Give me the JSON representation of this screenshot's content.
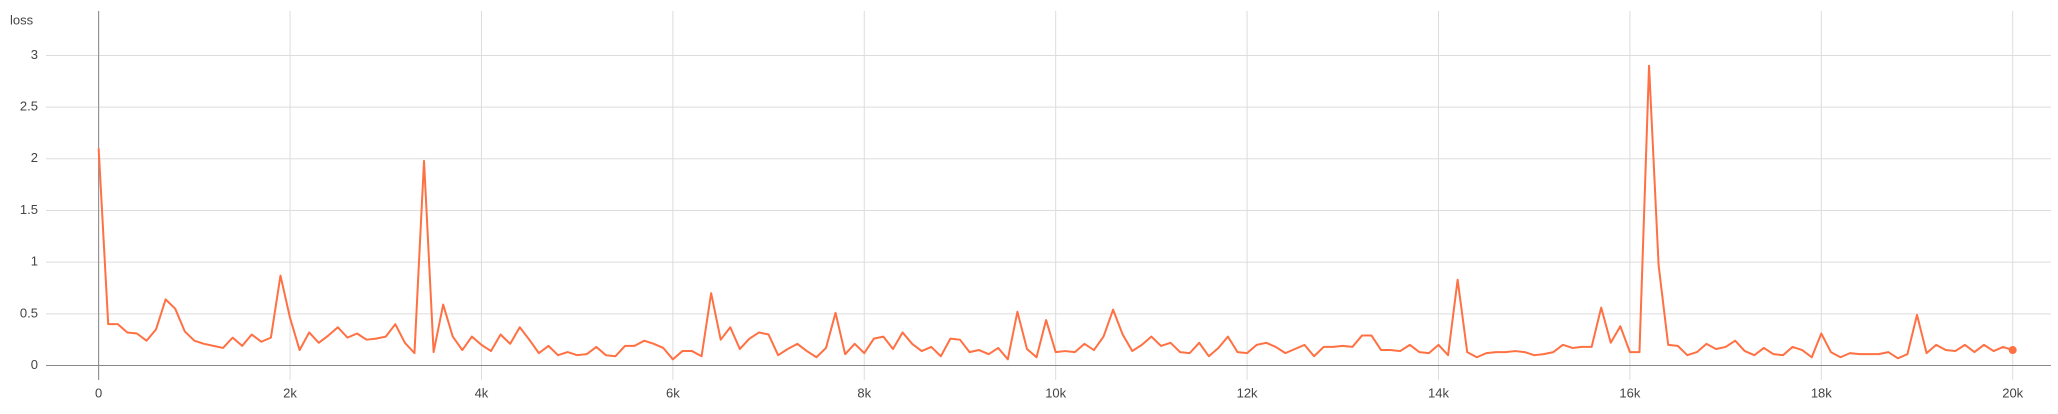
{
  "chart_data": {
    "type": "line",
    "title": "loss",
    "x": [
      0,
      100,
      200,
      300,
      400,
      500,
      600,
      700,
      800,
      900,
      1000,
      1100,
      1200,
      1300,
      1400,
      1500,
      1600,
      1700,
      1800,
      1900,
      2000,
      2100,
      2200,
      2300,
      2400,
      2500,
      2600,
      2700,
      2800,
      2900,
      3000,
      3100,
      3200,
      3300,
      3400,
      3500,
      3600,
      3700,
      3800,
      3900,
      4000,
      4100,
      4200,
      4300,
      4400,
      4500,
      4600,
      4700,
      4800,
      4900,
      5000,
      5100,
      5200,
      5300,
      5400,
      5500,
      5600,
      5700,
      5800,
      5900,
      6000,
      6100,
      6200,
      6300,
      6400,
      6500,
      6600,
      6700,
      6800,
      6900,
      7000,
      7100,
      7200,
      7300,
      7400,
      7500,
      7600,
      7700,
      7800,
      7900,
      8000,
      8100,
      8200,
      8300,
      8400,
      8500,
      8600,
      8700,
      8800,
      8900,
      9000,
      9100,
      9200,
      9300,
      9400,
      9500,
      9600,
      9700,
      9800,
      9900,
      10000,
      10100,
      10200,
      10300,
      10400,
      10500,
      10600,
      10700,
      10800,
      10900,
      11000,
      11100,
      11200,
      11300,
      11400,
      11500,
      11600,
      11700,
      11800,
      11900,
      12000,
      12100,
      12200,
      12300,
      12400,
      12500,
      12600,
      12700,
      12800,
      12900,
      13000,
      13100,
      13200,
      13300,
      13400,
      13500,
      13600,
      13700,
      13800,
      13900,
      14000,
      14100,
      14200,
      14300,
      14400,
      14500,
      14600,
      14700,
      14800,
      14900,
      15000,
      15100,
      15200,
      15300,
      15400,
      15500,
      15600,
      15700,
      15800,
      15900,
      16000,
      16100,
      16200,
      16300,
      16400,
      16500,
      16600,
      16700,
      16800,
      16900,
      17000,
      17100,
      17200,
      17300,
      17400,
      17500,
      17600,
      17700,
      17800,
      17900,
      18000,
      18100,
      18200,
      18300,
      18400,
      18500,
      18600,
      18700,
      18800,
      18900,
      19000,
      19100,
      19200,
      19300,
      19400,
      19500,
      19600,
      19700,
      19800,
      19900,
      20000
    ],
    "series": [
      {
        "color": "#ff7043",
        "values": [
          2.1,
          0.4,
          0.4,
          0.32,
          0.31,
          0.24,
          0.35,
          0.64,
          0.55,
          0.33,
          0.24,
          0.21,
          0.19,
          0.17,
          0.27,
          0.19,
          0.3,
          0.23,
          0.27,
          0.87,
          0.46,
          0.15,
          0.32,
          0.22,
          0.29,
          0.37,
          0.27,
          0.31,
          0.25,
          0.26,
          0.28,
          0.4,
          0.22,
          0.12,
          1.98,
          0.13,
          0.59,
          0.28,
          0.15,
          0.28,
          0.2,
          0.14,
          0.3,
          0.21,
          0.37,
          0.25,
          0.12,
          0.19,
          0.1,
          0.13,
          0.1,
          0.11,
          0.18,
          0.1,
          0.09,
          0.19,
          0.19,
          0.24,
          0.21,
          0.17,
          0.06,
          0.14,
          0.14,
          0.09,
          0.7,
          0.25,
          0.37,
          0.16,
          0.26,
          0.32,
          0.3,
          0.1,
          0.16,
          0.21,
          0.14,
          0.08,
          0.17,
          0.51,
          0.11,
          0.21,
          0.12,
          0.26,
          0.28,
          0.16,
          0.32,
          0.21,
          0.14,
          0.18,
          0.09,
          0.26,
          0.25,
          0.13,
          0.15,
          0.11,
          0.17,
          0.06,
          0.52,
          0.16,
          0.08,
          0.44,
          0.13,
          0.14,
          0.13,
          0.21,
          0.15,
          0.28,
          0.54,
          0.3,
          0.14,
          0.2,
          0.28,
          0.19,
          0.22,
          0.13,
          0.12,
          0.22,
          0.09,
          0.17,
          0.28,
          0.13,
          0.12,
          0.2,
          0.22,
          0.18,
          0.12,
          0.16,
          0.2,
          0.09,
          0.18,
          0.18,
          0.19,
          0.18,
          0.29,
          0.29,
          0.15,
          0.15,
          0.14,
          0.2,
          0.13,
          0.12,
          0.2,
          0.1,
          0.83,
          0.13,
          0.08,
          0.12,
          0.13,
          0.13,
          0.14,
          0.13,
          0.1,
          0.11,
          0.13,
          0.2,
          0.17,
          0.18,
          0.18,
          0.56,
          0.22,
          0.38,
          0.13,
          0.13,
          2.9,
          0.97,
          0.2,
          0.19,
          0.1,
          0.13,
          0.21,
          0.16,
          0.18,
          0.24,
          0.14,
          0.1,
          0.17,
          0.11,
          0.1,
          0.18,
          0.15,
          0.08,
          0.31,
          0.13,
          0.08,
          0.12,
          0.11,
          0.11,
          0.11,
          0.13,
          0.07,
          0.11,
          0.49,
          0.12,
          0.2,
          0.15,
          0.14,
          0.2,
          0.13,
          0.2,
          0.14,
          0.18,
          0.15
        ]
      }
    ],
    "xlim": [
      -550,
      20400
    ],
    "xticks": [
      0,
      {
        "value": 2000,
        "label": "2k"
      },
      {
        "value": 4000,
        "label": "4k"
      },
      {
        "value": 6000,
        "label": "6k"
      },
      {
        "value": 8000,
        "label": "8k"
      },
      {
        "value": 10000,
        "label": "10k"
      },
      {
        "value": 12000,
        "label": "12k"
      },
      {
        "value": 14000,
        "label": "14k"
      },
      {
        "value": 16000,
        "label": "16k"
      },
      {
        "value": 18000,
        "label": "18k"
      },
      {
        "value": 20000,
        "label": "20k"
      }
    ],
    "ylim": [
      -0.14,
      3.43
    ],
    "yticks": [
      0,
      0.5,
      1,
      1.5,
      2,
      2.5,
      3
    ],
    "grid": true
  }
}
